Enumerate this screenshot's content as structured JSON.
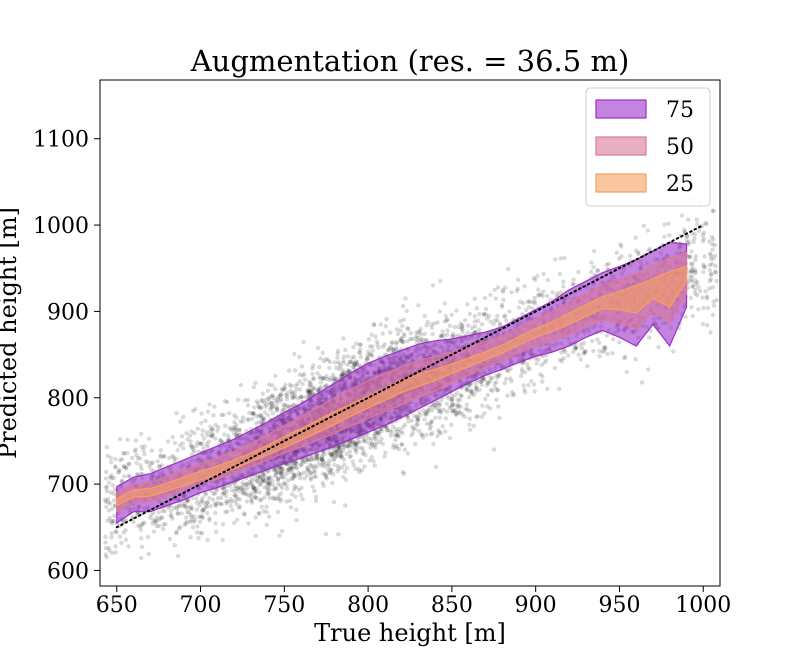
{
  "chart_data": {
    "type": "area",
    "title": "Augmentation (res. = 36.5 m)",
    "xlabel": "True height [m]",
    "ylabel": "Predicted height [m]",
    "xlim": [
      640,
      1010
    ],
    "ylim": [
      582,
      1168
    ],
    "xticks": [
      650,
      700,
      750,
      800,
      850,
      900,
      950,
      1000
    ],
    "yticks": [
      600,
      700,
      800,
      900,
      1000,
      1100
    ],
    "grid": false,
    "legend_position": "top-right",
    "reference_line": {
      "style": "dotted",
      "color": "#000000",
      "from": [
        650,
        650
      ],
      "to": [
        1000,
        1000
      ]
    },
    "x": [
      650,
      660,
      670,
      680,
      690,
      700,
      710,
      720,
      730,
      740,
      750,
      760,
      770,
      780,
      790,
      800,
      810,
      820,
      830,
      840,
      850,
      860,
      870,
      880,
      890,
      900,
      910,
      920,
      930,
      940,
      950,
      960,
      970,
      980,
      990
    ],
    "series": [
      {
        "name": "75",
        "color": "#9b30c8",
        "upper": [
          697,
          708,
          712,
          720,
          728,
          736,
          744,
          752,
          762,
          772,
          783,
          793,
          805,
          817,
          829,
          840,
          848,
          855,
          862,
          866,
          868,
          872,
          876,
          882,
          892,
          902,
          912,
          925,
          935,
          945,
          952,
          960,
          970,
          980,
          978
        ],
        "lower": [
          655,
          668,
          668,
          675,
          682,
          690,
          696,
          703,
          710,
          717,
          724,
          730,
          737,
          744,
          752,
          760,
          768,
          777,
          787,
          797,
          807,
          817,
          826,
          833,
          841,
          848,
          853,
          860,
          870,
          878,
          870,
          860,
          885,
          860,
          905
        ]
      },
      {
        "name": "50",
        "color": "#d97a9a",
        "upper": [
          690,
          700,
          702,
          709,
          716,
          724,
          730,
          738,
          747,
          757,
          768,
          778,
          789,
          800,
          810,
          820,
          828,
          836,
          843,
          848,
          853,
          859,
          865,
          872,
          882,
          891,
          900,
          911,
          921,
          931,
          937,
          944,
          953,
          962,
          968
        ],
        "lower": [
          668,
          678,
          680,
          686,
          693,
          700,
          706,
          712,
          720,
          728,
          736,
          743,
          751,
          759,
          768,
          776,
          784,
          792,
          800,
          808,
          817,
          826,
          835,
          843,
          852,
          860,
          866,
          873,
          882,
          890,
          887,
          880,
          900,
          888,
          920
        ]
      },
      {
        "name": "25",
        "color": "#f5a060",
        "upper": [
          683,
          693,
          695,
          701,
          708,
          715,
          721,
          728,
          736,
          745,
          755,
          764,
          774,
          784,
          793,
          802,
          811,
          820,
          827,
          833,
          839,
          846,
          853,
          861,
          871,
          880,
          888,
          898,
          908,
          917,
          923,
          930,
          938,
          946,
          952
        ],
        "lower": [
          675,
          685,
          686,
          692,
          698,
          705,
          711,
          718,
          726,
          734,
          742,
          751,
          760,
          769,
          779,
          788,
          797,
          806,
          813,
          820,
          828,
          836,
          844,
          852,
          861,
          870,
          877,
          885,
          894,
          903,
          902,
          898,
          915,
          905,
          935
        ]
      }
    ],
    "scatter": {
      "color": "#000000",
      "opacity": 0.15,
      "note_density": "dense point cloud along the diagonal",
      "seed": 7,
      "count": 5000
    }
  }
}
